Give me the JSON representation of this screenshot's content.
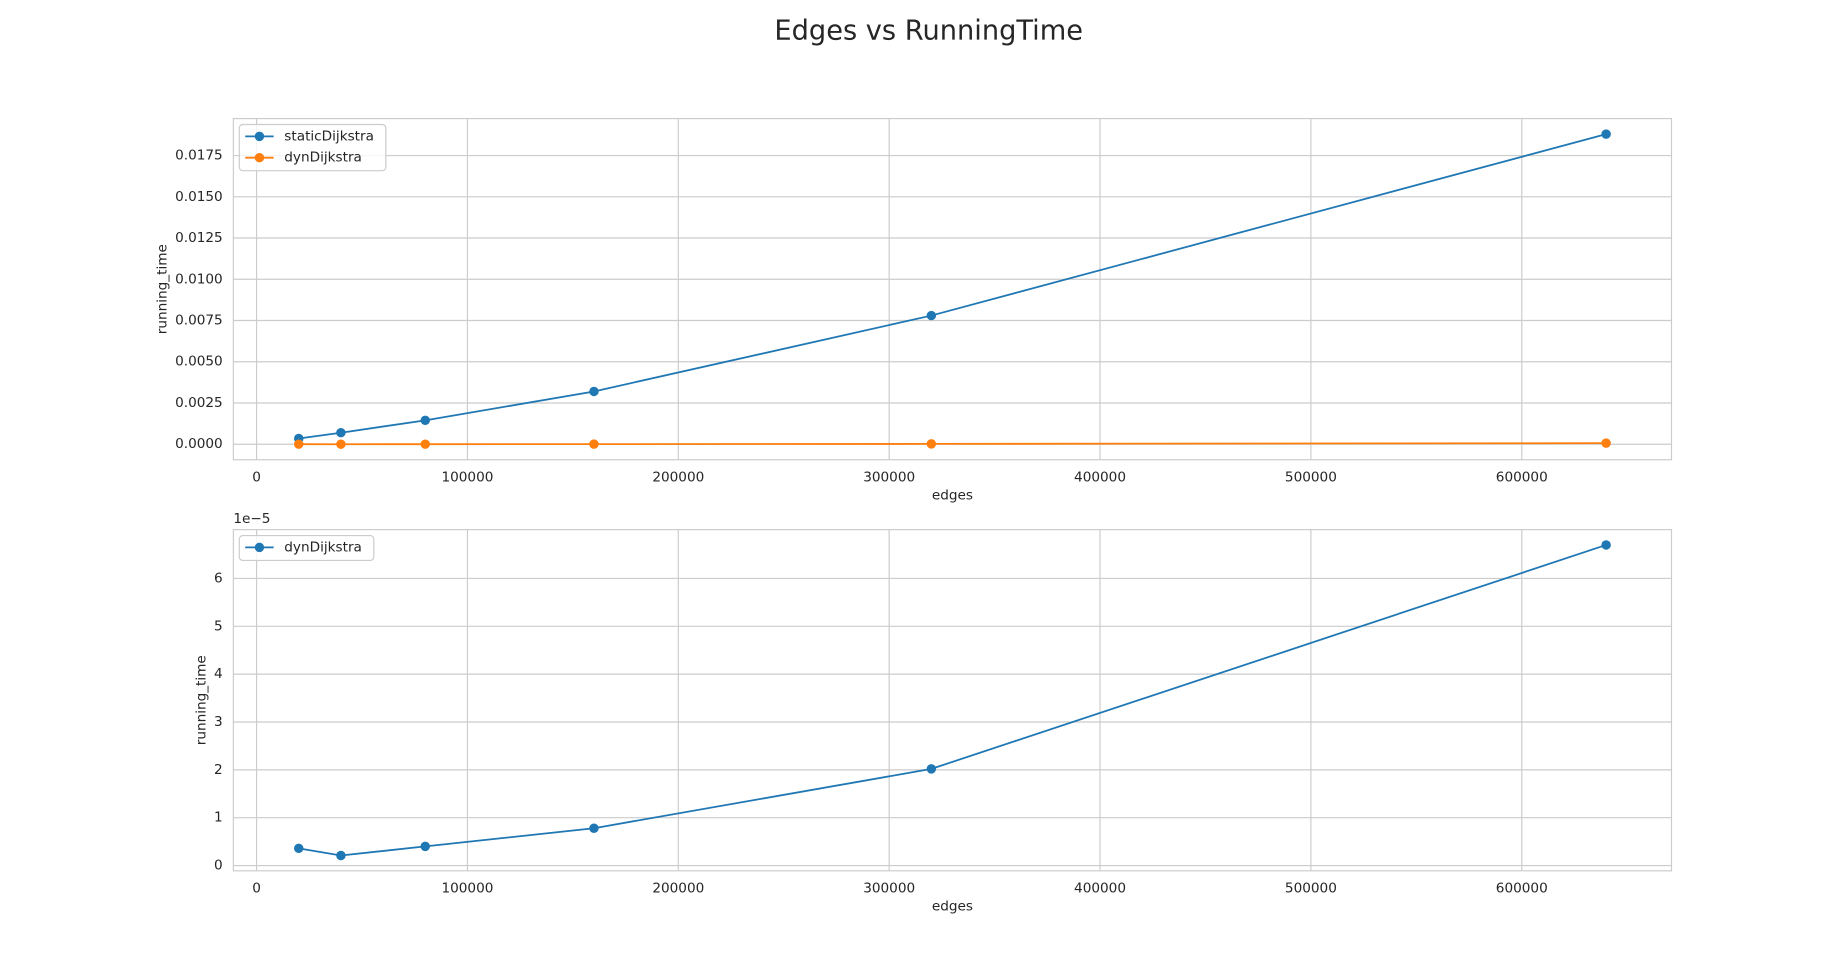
{
  "title": "Edges vs RunningTime",
  "chart_data": [
    {
      "type": "line",
      "x": [
        20000,
        40000,
        80000,
        160000,
        320000,
        640000
      ],
      "series": [
        {
          "name": "staticDijkstra",
          "color": "#1f77b4",
          "values": [
            0.00035,
            0.0007,
            0.00145,
            0.0032,
            0.0078,
            0.0188
          ]
        },
        {
          "name": "dynDijkstra",
          "color": "#ff7f0e",
          "values": [
            3.6e-06,
            2.1e-06,
            4e-06,
            7.8e-06,
            2.02e-05,
            6.7e-05
          ]
        }
      ],
      "xlabel": "edges",
      "ylabel": "running_time",
      "xlim": [
        -11000,
        671000
      ],
      "xticks": [
        0,
        100000,
        200000,
        300000,
        400000,
        500000,
        600000
      ],
      "ylim": [
        -0.00094,
        0.01974
      ],
      "yticks": [
        {
          "value": 0,
          "label": "0.0000"
        },
        0.0025,
        {
          "value": 0.005,
          "label": "0.0050"
        },
        0.0075,
        {
          "value": 0.01,
          "label": "0.0100"
        },
        0.0125,
        {
          "value": 0.015,
          "label": "0.0150"
        },
        0.0175
      ],
      "grid": true,
      "legend": "upper left"
    },
    {
      "type": "line",
      "x": [
        20000,
        40000,
        80000,
        160000,
        320000,
        640000
      ],
      "series": [
        {
          "name": "dynDijkstra",
          "color": "#1f77b4",
          "values": [
            3.6e-06,
            2.1e-06,
            4e-06,
            7.8e-06,
            2.02e-05,
            6.7e-05
          ]
        }
      ],
      "xlabel": "edges",
      "ylabel": "running_time",
      "xlim": [
        -11000,
        671000
      ],
      "xticks": [
        0,
        100000,
        200000,
        300000,
        400000,
        500000,
        600000
      ],
      "ylim": [
        -1.1e-06,
        7.02e-05
      ],
      "yticks": [
        0,
        {
          "value": 1e-05,
          "label": "1"
        },
        {
          "value": 2e-05,
          "label": "2"
        },
        {
          "value": 3e-05,
          "label": "3"
        },
        {
          "value": 4e-05,
          "label": "4"
        },
        {
          "value": 5e-05,
          "label": "5"
        },
        {
          "value": 6e-05,
          "label": "6"
        }
      ],
      "offset_label": "1e−5",
      "grid": true,
      "legend": "upper left"
    }
  ]
}
